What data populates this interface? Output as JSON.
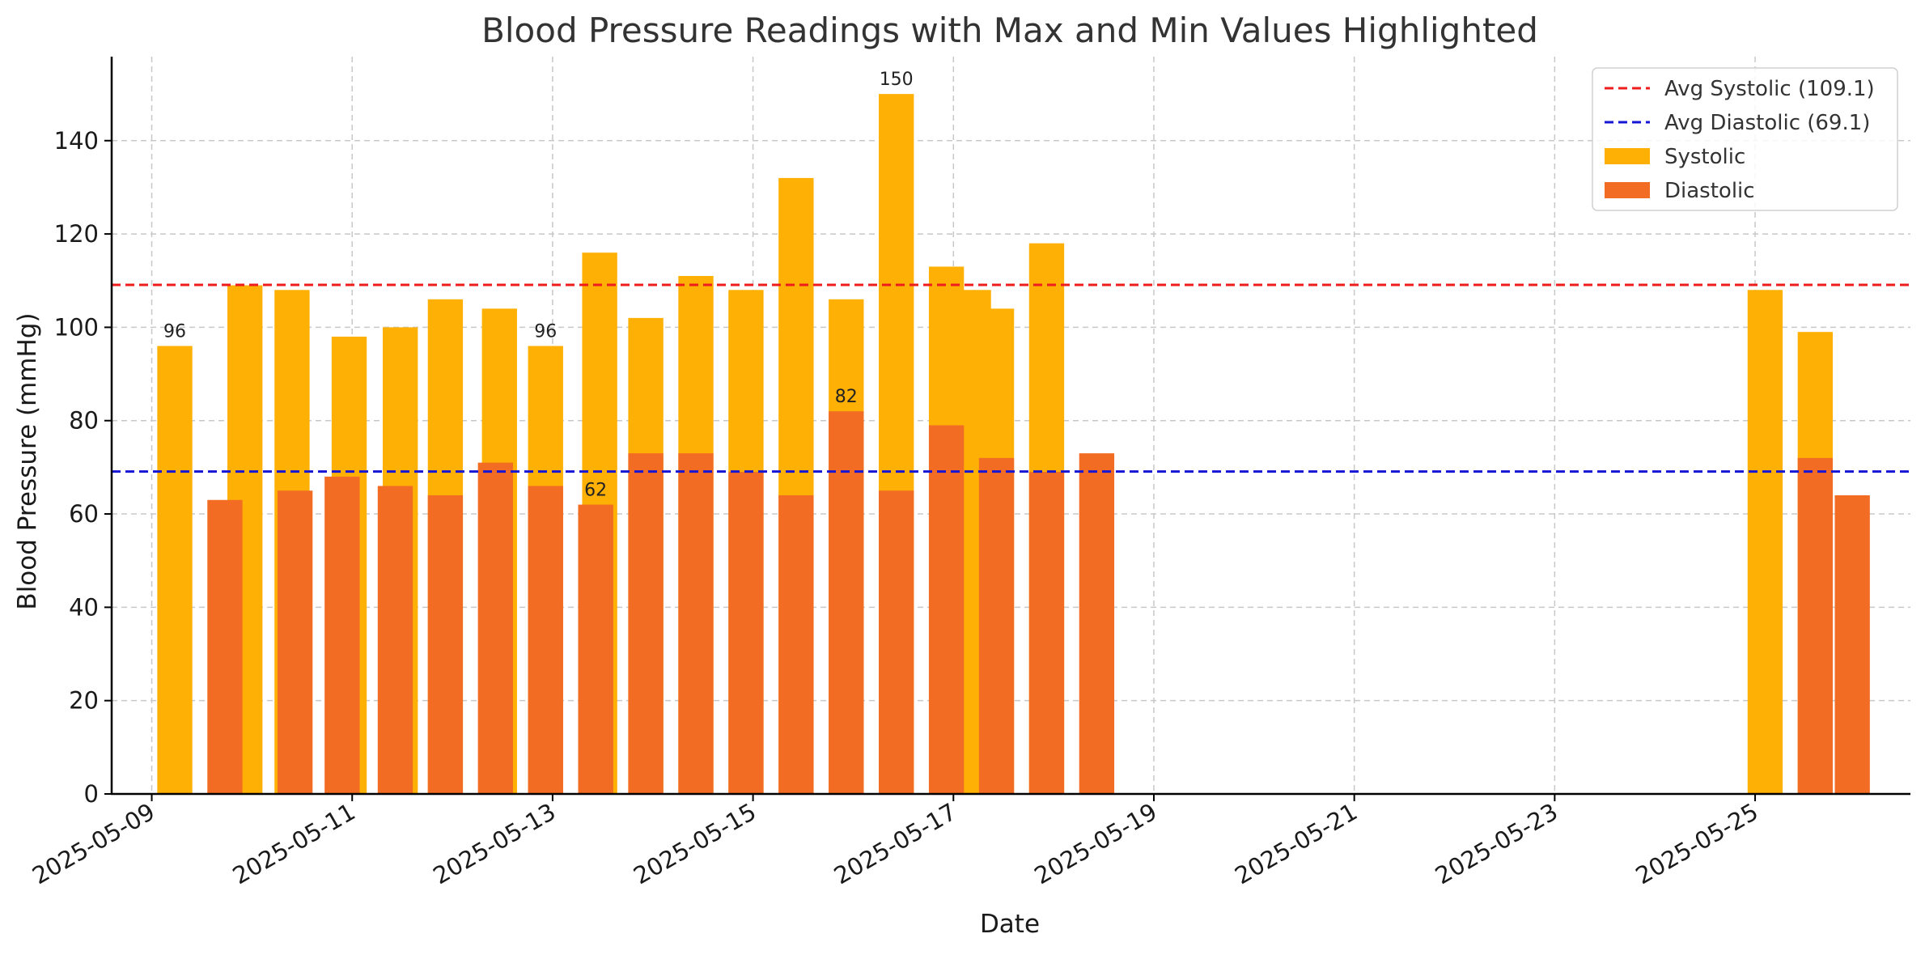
{
  "chart_data": {
    "type": "bar",
    "title": "Blood Pressure Readings with Max and Min Values Highlighted",
    "xlabel": "Date",
    "ylabel": "Blood Pressure (mmHg)",
    "ylim": [
      0,
      158
    ],
    "yticks": [
      0,
      20,
      40,
      60,
      80,
      100,
      120,
      140
    ],
    "xlim_days": [
      -0.4,
      17.55
    ],
    "xticks": [
      {
        "day": 0,
        "label": "2025-05-09"
      },
      {
        "day": 2,
        "label": "2025-05-11"
      },
      {
        "day": 4,
        "label": "2025-05-13"
      },
      {
        "day": 6,
        "label": "2025-05-15"
      },
      {
        "day": 8,
        "label": "2025-05-17"
      },
      {
        "day": 10,
        "label": "2025-05-19"
      },
      {
        "day": 12,
        "label": "2025-05-21"
      },
      {
        "day": 14,
        "label": "2025-05-23"
      },
      {
        "day": 16,
        "label": "2025-05-25"
      }
    ],
    "grid": true,
    "legend_position": "top-right",
    "colors": {
      "systolic": "#ffb005",
      "diastolic": "#f26c23",
      "avg_systolic": "#ee1c1c",
      "avg_diastolic": "#1515d6"
    },
    "series": [
      {
        "name": "Systolic",
        "key": "systolic",
        "width_days": 0.35,
        "points": [
          {
            "day": 0.23,
            "value": 96
          },
          {
            "day": 0.93,
            "value": 109
          },
          {
            "day": 1.4,
            "value": 108
          },
          {
            "day": 1.97,
            "value": 98
          },
          {
            "day": 2.48,
            "value": 100
          },
          {
            "day": 2.93,
            "value": 106
          },
          {
            "day": 3.47,
            "value": 104
          },
          {
            "day": 3.93,
            "value": 96
          },
          {
            "day": 4.47,
            "value": 116
          },
          {
            "day": 4.93,
            "value": 102
          },
          {
            "day": 5.43,
            "value": 111
          },
          {
            "day": 5.93,
            "value": 108
          },
          {
            "day": 6.43,
            "value": 132
          },
          {
            "day": 6.93,
            "value": 106
          },
          {
            "day": 7.43,
            "value": 150
          },
          {
            "day": 7.93,
            "value": 113
          },
          {
            "day": 8.2,
            "value": 108
          },
          {
            "day": 8.43,
            "value": 104
          },
          {
            "day": 8.93,
            "value": 118
          },
          {
            "day": 16.1,
            "value": 108
          },
          {
            "day": 16.6,
            "value": 99
          }
        ]
      },
      {
        "name": "Diastolic",
        "key": "diastolic",
        "width_days": 0.35,
        "points": [
          {
            "day": 0.73,
            "value": 63
          },
          {
            "day": 1.43,
            "value": 65
          },
          {
            "day": 1.9,
            "value": 68
          },
          {
            "day": 2.43,
            "value": 66
          },
          {
            "day": 2.93,
            "value": 64
          },
          {
            "day": 3.43,
            "value": 71
          },
          {
            "day": 3.93,
            "value": 66
          },
          {
            "day": 4.43,
            "value": 62
          },
          {
            "day": 4.93,
            "value": 73
          },
          {
            "day": 5.43,
            "value": 73
          },
          {
            "day": 5.93,
            "value": 69
          },
          {
            "day": 6.43,
            "value": 64
          },
          {
            "day": 6.93,
            "value": 82
          },
          {
            "day": 7.43,
            "value": 65
          },
          {
            "day": 7.93,
            "value": 79
          },
          {
            "day": 8.43,
            "value": 72
          },
          {
            "day": 8.93,
            "value": 69
          },
          {
            "day": 9.43,
            "value": 73
          },
          {
            "day": 16.6,
            "value": 72
          },
          {
            "day": 16.97,
            "value": 64
          }
        ]
      }
    ],
    "reference_lines": [
      {
        "key": "avg_systolic",
        "name": "Avg Systolic (109.1)",
        "value": 109.1
      },
      {
        "key": "avg_diastolic",
        "name": "Avg Diastolic (69.1)",
        "value": 69.1
      }
    ],
    "annotations": [
      {
        "series": "Systolic",
        "day": 0.23,
        "value": 96,
        "text": "96"
      },
      {
        "series": "Systolic",
        "day": 3.93,
        "value": 96,
        "text": "96"
      },
      {
        "series": "Systolic",
        "day": 7.43,
        "value": 150,
        "text": "150"
      },
      {
        "series": "Diastolic",
        "day": 4.43,
        "value": 62,
        "text": "62"
      },
      {
        "series": "Diastolic",
        "day": 6.93,
        "value": 82,
        "text": "82"
      }
    ],
    "legend": [
      {
        "kind": "line",
        "key": "avg_systolic",
        "label": "Avg Systolic (109.1)"
      },
      {
        "kind": "line",
        "key": "avg_diastolic",
        "label": "Avg Diastolic (69.1)"
      },
      {
        "kind": "patch",
        "key": "systolic",
        "label": "Systolic"
      },
      {
        "kind": "patch",
        "key": "diastolic",
        "label": "Diastolic"
      }
    ]
  }
}
